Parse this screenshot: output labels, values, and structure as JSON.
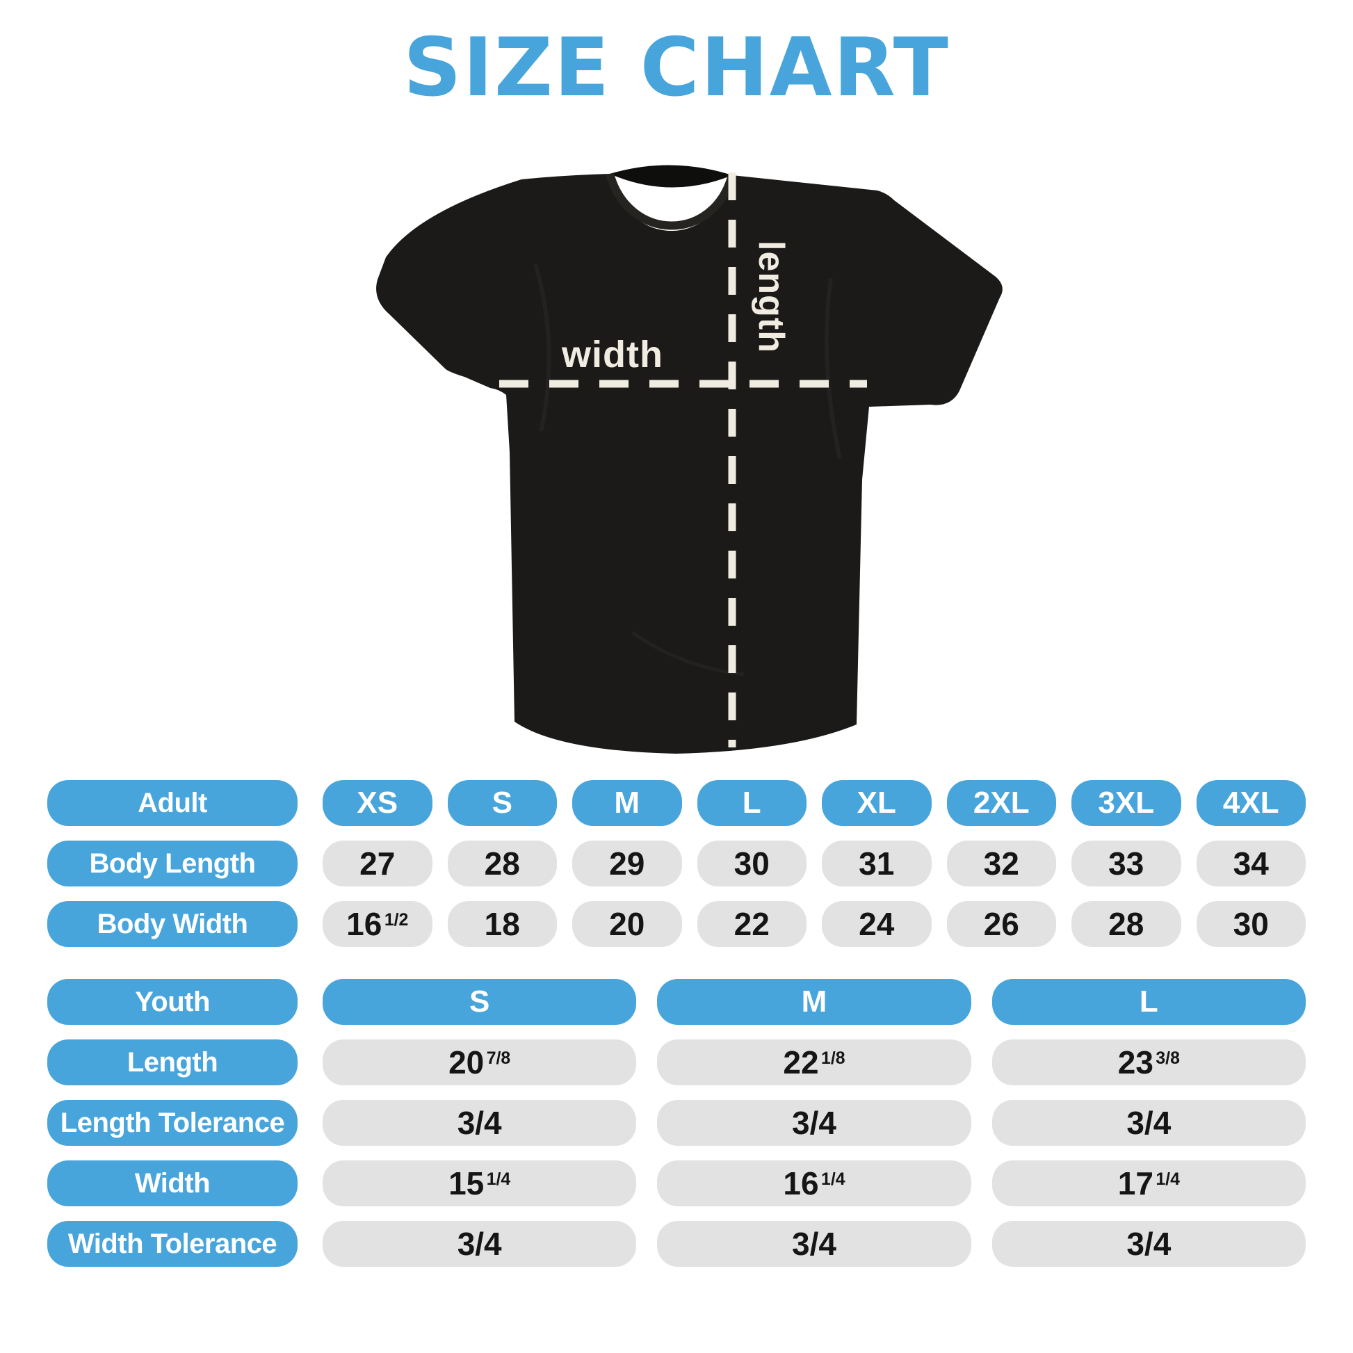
{
  "title": "SIZE CHART",
  "shirt": {
    "width_label": "width",
    "length_label": "length"
  },
  "adult": {
    "header_label": "Adult",
    "sizes": [
      "XS",
      "S",
      "M",
      "L",
      "XL",
      "2XL",
      "3XL",
      "4XL"
    ],
    "rows": [
      {
        "label": "Body Length",
        "values": [
          "27",
          "28",
          "29",
          "30",
          "31",
          "32",
          "33",
          "34"
        ]
      },
      {
        "label": "Body Width",
        "values": [
          "16 1/2",
          "18",
          "20",
          "22",
          "24",
          "26",
          "28",
          "30"
        ]
      }
    ]
  },
  "youth": {
    "header_label": "Youth",
    "sizes": [
      "S",
      "M",
      "L"
    ],
    "rows": [
      {
        "label": "Length",
        "values": [
          "20 7/8",
          "22 1/8",
          "23 3/8"
        ]
      },
      {
        "label": "Length Tolerance",
        "values": [
          "3/4",
          "3/4",
          "3/4"
        ]
      },
      {
        "label": "Width",
        "values": [
          "15 1/4",
          "16 1/4",
          "17 1/4"
        ]
      },
      {
        "label": "Width Tolerance",
        "values": [
          "3/4",
          "3/4",
          "3/4"
        ]
      }
    ]
  },
  "colors": {
    "accent_blue": "#48A5DB",
    "pill_gray": "#E2E2E2",
    "value_text": "#151515",
    "cream_dash": "#F1ECE1",
    "shirt_black": "#1B1A18",
    "background": "#FFFFFF"
  }
}
